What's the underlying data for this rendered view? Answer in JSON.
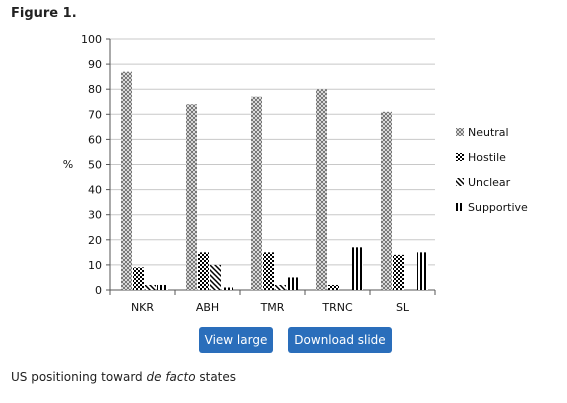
{
  "figure": {
    "label": "Figure 1.",
    "caption_prefix": "US positioning toward ",
    "caption_italic": "de facto",
    "caption_suffix": " states"
  },
  "buttons": {
    "view_large": "View large",
    "download_slide": "Download slide"
  },
  "colors": {
    "button_bg": "#2a6ebb",
    "gridline": "#c8c8c8",
    "neutral_pattern": "#888888",
    "bar_ink": "#000000"
  },
  "chart_data": {
    "type": "bar",
    "ylabel": "%",
    "xlabel": "",
    "ylim": [
      0,
      100
    ],
    "yticks": [
      0,
      10,
      20,
      30,
      40,
      50,
      60,
      70,
      80,
      90,
      100
    ],
    "grid": true,
    "legend_position": "right",
    "categories": [
      "NKR",
      "ABH",
      "TMR",
      "TRNC",
      "SL"
    ],
    "series": [
      {
        "name": "Neutral",
        "pattern": "crosshatch",
        "values": [
          87,
          74,
          77,
          80,
          71
        ]
      },
      {
        "name": "Hostile",
        "pattern": "checker",
        "values": [
          9,
          15,
          15,
          2,
          14
        ]
      },
      {
        "name": "Unclear",
        "pattern": "diagonal",
        "values": [
          2,
          10,
          2,
          0,
          0
        ]
      },
      {
        "name": "Supportive",
        "pattern": "vertical",
        "values": [
          2,
          1,
          5,
          17,
          15
        ]
      }
    ]
  }
}
